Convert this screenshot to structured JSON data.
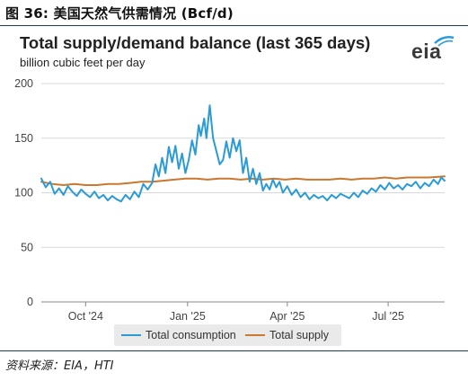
{
  "figure": {
    "title": "图 36:  美国天然气供需情况 (Bcf/d)",
    "source": "资料来源：EIA，HTI"
  },
  "logo": {
    "text": "eia"
  },
  "colors": {
    "consumption": "#2b9bd6",
    "supply": "#c8782f",
    "grid": "#d9d9d9",
    "rule": "#1f3864"
  },
  "chart_data": {
    "type": "line",
    "title": "Total supply/demand balance (last 365 days)",
    "subtitle": "billion cubic feet per day",
    "xlabel": "",
    "ylabel": "",
    "ylim": [
      0,
      200
    ],
    "yticks": [
      0,
      50,
      100,
      150,
      200
    ],
    "x_range": [
      "2024-08-22",
      "2025-08-21"
    ],
    "xticks": [
      {
        "date": "2024-10-01",
        "label": "Oct '24"
      },
      {
        "date": "2025-01-01",
        "label": "Jan '25"
      },
      {
        "date": "2025-04-01",
        "label": "Apr '25"
      },
      {
        "date": "2025-07-01",
        "label": "Jul '25"
      }
    ],
    "grid": "horizontal",
    "legend_position": "bottom",
    "series": [
      {
        "name": "Total consumption",
        "points": [
          [
            "2024-08-22",
            113
          ],
          [
            "2024-08-26",
            105
          ],
          [
            "2024-08-30",
            110
          ],
          [
            "2024-09-03",
            99
          ],
          [
            "2024-09-07",
            104
          ],
          [
            "2024-09-11",
            98
          ],
          [
            "2024-09-15",
            106
          ],
          [
            "2024-09-19",
            101
          ],
          [
            "2024-09-23",
            97
          ],
          [
            "2024-09-27",
            103
          ],
          [
            "2024-10-01",
            99
          ],
          [
            "2024-10-05",
            96
          ],
          [
            "2024-10-09",
            101
          ],
          [
            "2024-10-13",
            95
          ],
          [
            "2024-10-17",
            98
          ],
          [
            "2024-10-21",
            93
          ],
          [
            "2024-10-25",
            97
          ],
          [
            "2024-10-29",
            94
          ],
          [
            "2024-11-02",
            92
          ],
          [
            "2024-11-06",
            98
          ],
          [
            "2024-11-10",
            94
          ],
          [
            "2024-11-14",
            101
          ],
          [
            "2024-11-18",
            96
          ],
          [
            "2024-11-22",
            108
          ],
          [
            "2024-11-26",
            103
          ],
          [
            "2024-11-30",
            109
          ],
          [
            "2024-12-03",
            126
          ],
          [
            "2024-12-06",
            115
          ],
          [
            "2024-12-09",
            132
          ],
          [
            "2024-12-12",
            118
          ],
          [
            "2024-12-15",
            142
          ],
          [
            "2024-12-18",
            128
          ],
          [
            "2024-12-21",
            143
          ],
          [
            "2024-12-24",
            122
          ],
          [
            "2024-12-27",
            136
          ],
          [
            "2024-12-30",
            118
          ],
          [
            "2025-01-02",
            130
          ],
          [
            "2025-01-05",
            148
          ],
          [
            "2025-01-08",
            135
          ],
          [
            "2025-01-11",
            162
          ],
          [
            "2025-01-13",
            152
          ],
          [
            "2025-01-16",
            168
          ],
          [
            "2025-01-18",
            150
          ],
          [
            "2025-01-21",
            180
          ],
          [
            "2025-01-24",
            150
          ],
          [
            "2025-01-27",
            138
          ],
          [
            "2025-01-30",
            126
          ],
          [
            "2025-02-02",
            130
          ],
          [
            "2025-02-05",
            147
          ],
          [
            "2025-02-08",
            132
          ],
          [
            "2025-02-11",
            150
          ],
          [
            "2025-02-14",
            138
          ],
          [
            "2025-02-17",
            148
          ],
          [
            "2025-02-20",
            118
          ],
          [
            "2025-02-23",
            132
          ],
          [
            "2025-02-26",
            110
          ],
          [
            "2025-03-01",
            122
          ],
          [
            "2025-03-04",
            108
          ],
          [
            "2025-03-07",
            118
          ],
          [
            "2025-03-10",
            102
          ],
          [
            "2025-03-13",
            108
          ],
          [
            "2025-03-16",
            103
          ],
          [
            "2025-03-19",
            112
          ],
          [
            "2025-03-22",
            105
          ],
          [
            "2025-03-25",
            110
          ],
          [
            "2025-03-28",
            100
          ],
          [
            "2025-04-01",
            106
          ],
          [
            "2025-04-05",
            98
          ],
          [
            "2025-04-09",
            103
          ],
          [
            "2025-04-13",
            96
          ],
          [
            "2025-04-17",
            100
          ],
          [
            "2025-04-21",
            94
          ],
          [
            "2025-04-25",
            98
          ],
          [
            "2025-04-29",
            95
          ],
          [
            "2025-05-03",
            97
          ],
          [
            "2025-05-07",
            93
          ],
          [
            "2025-05-11",
            98
          ],
          [
            "2025-05-15",
            95
          ],
          [
            "2025-05-19",
            99
          ],
          [
            "2025-05-23",
            97
          ],
          [
            "2025-05-27",
            95
          ],
          [
            "2025-05-31",
            100
          ],
          [
            "2025-06-04",
            96
          ],
          [
            "2025-06-08",
            102
          ],
          [
            "2025-06-12",
            99
          ],
          [
            "2025-06-16",
            104
          ],
          [
            "2025-06-20",
            101
          ],
          [
            "2025-06-24",
            107
          ],
          [
            "2025-06-28",
            103
          ],
          [
            "2025-07-02",
            109
          ],
          [
            "2025-07-06",
            104
          ],
          [
            "2025-07-10",
            107
          ],
          [
            "2025-07-14",
            103
          ],
          [
            "2025-07-18",
            108
          ],
          [
            "2025-07-22",
            106
          ],
          [
            "2025-07-26",
            110
          ],
          [
            "2025-07-30",
            104
          ],
          [
            "2025-08-03",
            109
          ],
          [
            "2025-08-07",
            106
          ],
          [
            "2025-08-11",
            112
          ],
          [
            "2025-08-15",
            108
          ],
          [
            "2025-08-18",
            114
          ],
          [
            "2025-08-21",
            111
          ]
        ]
      },
      {
        "name": "Total supply",
        "points": [
          [
            "2024-08-22",
            110
          ],
          [
            "2024-09-01",
            108
          ],
          [
            "2024-09-11",
            107
          ],
          [
            "2024-09-21",
            108
          ],
          [
            "2024-10-01",
            107
          ],
          [
            "2024-10-11",
            107
          ],
          [
            "2024-10-21",
            108
          ],
          [
            "2024-10-31",
            108
          ],
          [
            "2024-11-10",
            109
          ],
          [
            "2024-11-20",
            110
          ],
          [
            "2024-11-30",
            110
          ],
          [
            "2024-12-10",
            111
          ],
          [
            "2024-12-20",
            112
          ],
          [
            "2024-12-30",
            113
          ],
          [
            "2025-01-09",
            113
          ],
          [
            "2025-01-19",
            112
          ],
          [
            "2025-01-29",
            113
          ],
          [
            "2025-02-08",
            113
          ],
          [
            "2025-02-18",
            112
          ],
          [
            "2025-02-28",
            113
          ],
          [
            "2025-03-10",
            112
          ],
          [
            "2025-03-20",
            113
          ],
          [
            "2025-03-30",
            112
          ],
          [
            "2025-04-09",
            113
          ],
          [
            "2025-04-19",
            112
          ],
          [
            "2025-04-29",
            112
          ],
          [
            "2025-05-09",
            112
          ],
          [
            "2025-05-19",
            113
          ],
          [
            "2025-05-29",
            112
          ],
          [
            "2025-06-08",
            113
          ],
          [
            "2025-06-18",
            113
          ],
          [
            "2025-06-28",
            114
          ],
          [
            "2025-07-08",
            113
          ],
          [
            "2025-07-18",
            114
          ],
          [
            "2025-07-28",
            114
          ],
          [
            "2025-08-07",
            114
          ],
          [
            "2025-08-21",
            115
          ]
        ]
      }
    ]
  }
}
